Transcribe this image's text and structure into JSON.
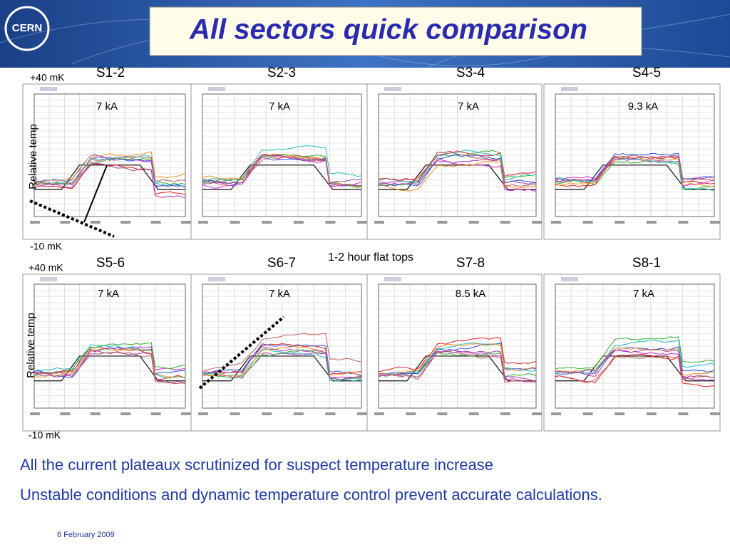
{
  "header": {
    "logo": "CERN",
    "title": "All sectors quick comparison"
  },
  "rows": [
    {
      "top_label": "+40 mK",
      "bottom_label": "-10 mK",
      "axis_label": "Relative temp",
      "panels": [
        {
          "sector": "S1-2",
          "current": "7 kA"
        },
        {
          "sector": "S2-3",
          "current": "7 kA"
        },
        {
          "sector": "S3-4",
          "current": "7 kA"
        },
        {
          "sector": "S4-5",
          "current": "9.3 kA"
        }
      ]
    },
    {
      "top_label": "+40 mK",
      "bottom_label": "-10 mK",
      "axis_label": "Relative temp",
      "panels": [
        {
          "sector": "S5-6",
          "current": "7 kA"
        },
        {
          "sector": "S6-7",
          "current": "7 kA"
        },
        {
          "sector": "S7-8",
          "current": "8.5 kA"
        },
        {
          "sector": "S8-1",
          "current": "7 kA"
        }
      ]
    }
  ],
  "annotation": "1-2 hour flat tops",
  "bullets": [
    "All the current plateaux scrutinized for suspect temperature increase",
    "Unstable conditions and dynamic temperature control prevent accurate calculations."
  ],
  "footer": {
    "date": "6 February 2009"
  }
}
